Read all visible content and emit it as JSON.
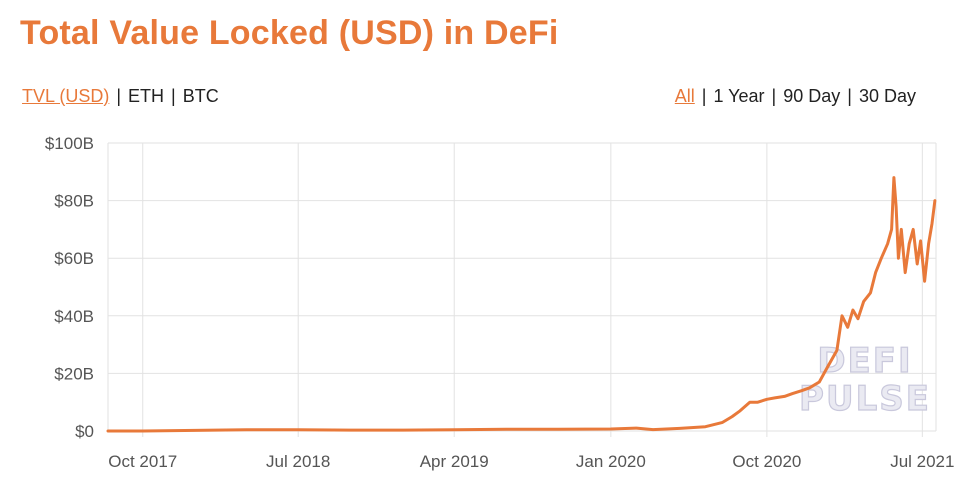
{
  "title": "Total Value Locked (USD) in DeFi",
  "tabs_left": [
    "TVL (USD)",
    "ETH",
    "BTC"
  ],
  "tabs_right": [
    "All",
    "1 Year",
    "90 Day",
    "30 Day"
  ],
  "separator": "|",
  "watermark": [
    "DEFI",
    "PULSE"
  ],
  "colors": {
    "accent": "#e8793a",
    "grid": "#e2e2e2"
  },
  "chart_data": {
    "type": "line",
    "title": "Total Value Locked (USD) in DeFi",
    "xlabel": "",
    "ylabel": "",
    "grid": true,
    "y_ticks": [
      "$0",
      "$20B",
      "$40B",
      "$60B",
      "$80B",
      "$100B"
    ],
    "ylim": [
      0,
      100
    ],
    "y_unit": "billion USD",
    "x_ticks": [
      "Oct 2017",
      "Jul 2018",
      "Apr 2019",
      "Jan 2020",
      "Oct 2020",
      "Jul 2021"
    ],
    "x_tick_dates": [
      "2017-10-01",
      "2018-07-01",
      "2019-04-01",
      "2020-01-01",
      "2020-10-01",
      "2021-07-01"
    ],
    "xlim": [
      "2017-08-01",
      "2021-07-25"
    ],
    "series": [
      {
        "color": "#e8793a",
        "x": [
          "2017-08-01",
          "2017-10-01",
          "2018-01-01",
          "2018-04-01",
          "2018-07-01",
          "2018-10-01",
          "2019-01-01",
          "2019-04-01",
          "2019-07-01",
          "2019-10-01",
          "2020-01-01",
          "2020-02-15",
          "2020-03-15",
          "2020-05-01",
          "2020-06-15",
          "2020-07-15",
          "2020-08-01",
          "2020-08-15",
          "2020-09-01",
          "2020-09-15",
          "2020-10-01",
          "2020-10-15",
          "2020-11-01",
          "2020-11-15",
          "2020-12-01",
          "2020-12-15",
          "2021-01-01",
          "2021-01-15",
          "2021-02-01",
          "2021-02-10",
          "2021-02-20",
          "2021-03-01",
          "2021-03-10",
          "2021-03-20",
          "2021-04-01",
          "2021-04-10",
          "2021-04-20",
          "2021-05-01",
          "2021-05-08",
          "2021-05-12",
          "2021-05-16",
          "2021-05-20",
          "2021-05-25",
          "2021-06-01",
          "2021-06-08",
          "2021-06-15",
          "2021-06-22",
          "2021-06-28",
          "2021-07-05",
          "2021-07-12",
          "2021-07-18",
          "2021-07-23"
        ],
        "y": [
          0,
          0,
          0.2,
          0.4,
          0.4,
          0.3,
          0.3,
          0.4,
          0.6,
          0.6,
          0.7,
          1.0,
          0.5,
          0.9,
          1.5,
          3,
          5,
          7,
          10,
          10,
          11,
          11.5,
          12,
          13,
          14,
          15,
          17,
          22,
          28,
          40,
          36,
          42,
          39,
          45,
          48,
          55,
          60,
          65,
          70,
          88,
          78,
          60,
          70,
          55,
          65,
          70,
          58,
          66,
          52,
          65,
          72,
          80
        ]
      }
    ]
  }
}
